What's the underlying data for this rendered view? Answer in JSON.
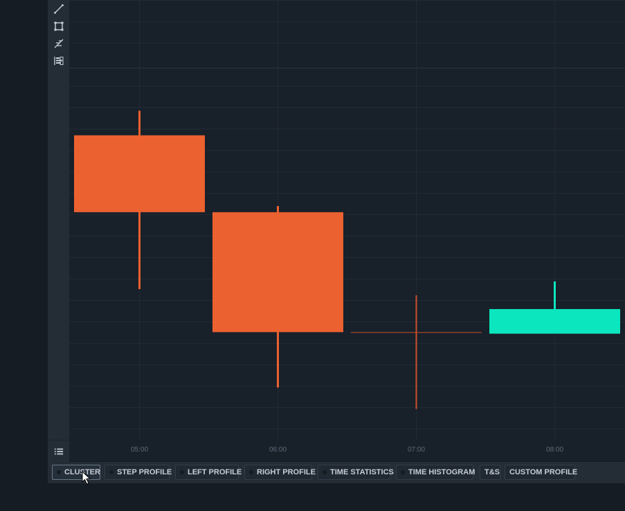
{
  "toolbar": {
    "tools": [
      {
        "icon": "line-tool-icon"
      },
      {
        "icon": "rectangle-tool-icon"
      },
      {
        "icon": "fibonacci-tool-icon"
      },
      {
        "icon": "volume-profile-tool-icon"
      }
    ],
    "list_icon": "list-icon"
  },
  "chart_data": {
    "type": "candlestick",
    "x": [
      "05:00",
      "06:00",
      "07:00",
      "08:00"
    ],
    "candles": [
      {
        "time": "05:00",
        "open": 73.0,
        "high": 81.0,
        "low": 23.0,
        "close": 48.0,
        "direction": "down"
      },
      {
        "time": "06:00",
        "open": 48.0,
        "high": 50.0,
        "low": -9.0,
        "close": 9.0,
        "direction": "down"
      },
      {
        "time": "07:00",
        "open": 9.0,
        "high": 21.0,
        "low": -16.0,
        "close": 9.0,
        "direction": "flat"
      },
      {
        "time": "08:00",
        "open": 8.5,
        "high": 25.5,
        "low": 8.5,
        "close": 16.5,
        "direction": "up"
      }
    ],
    "ylim": [
      -26,
      117
    ],
    "colors": {
      "down": "#ec6130",
      "up": "#0ce6be",
      "flat": "#c94f2a",
      "grid": "#222b35",
      "tick_text": "#5f6a77"
    },
    "grid": true
  },
  "tabs": [
    {
      "label": "CLUSTER",
      "active": true,
      "dot": true
    },
    {
      "label": "STEP PROFILE",
      "active": false,
      "dot": true
    },
    {
      "label": "LEFT PROFILE",
      "active": false,
      "dot": true
    },
    {
      "label": "RIGHT PROFILE",
      "active": false,
      "dot": true
    },
    {
      "label": "TIME STATISTICS",
      "active": false,
      "dot": true
    },
    {
      "label": "TIME HISTOGRAM",
      "active": false,
      "dot": true
    },
    {
      "label": "T&S",
      "active": false,
      "dot": false
    },
    {
      "label": "CUSTOM PROFILE",
      "active": false,
      "dot": false
    }
  ]
}
